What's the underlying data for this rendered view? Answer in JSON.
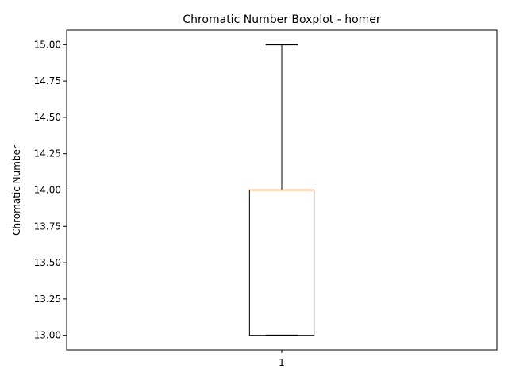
{
  "chart_data": {
    "type": "box",
    "title": "Chromatic Number Boxplot - homer",
    "xlabel": "",
    "ylabel": "Chromatic Number",
    "categories": [
      "1"
    ],
    "boxes": [
      {
        "category": "1",
        "whisker_low": 13.0,
        "q1": 13.0,
        "median": 14.0,
        "q3": 14.0,
        "whisker_high": 15.0
      }
    ],
    "ylim": [
      12.9,
      15.1
    ],
    "yticks": [
      13.0,
      13.25,
      13.5,
      13.75,
      14.0,
      14.25,
      14.5,
      14.75,
      15.0
    ],
    "ytick_labels": [
      "13.00",
      "13.25",
      "13.50",
      "13.75",
      "14.00",
      "14.25",
      "14.50",
      "14.75",
      "15.00"
    ],
    "grid": false,
    "colors": {
      "box": "#000000",
      "median": "#ff7f0e",
      "whisker": "#000000"
    }
  }
}
